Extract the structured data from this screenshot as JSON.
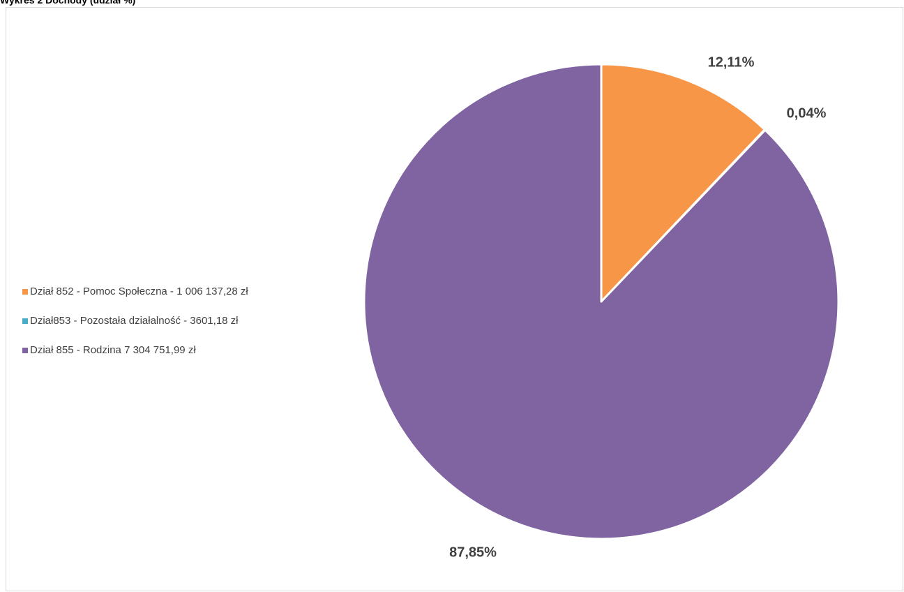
{
  "page": {
    "title": "Wykres 2 Dochody (udział %)"
  },
  "chart_data": {
    "type": "pie",
    "title": "",
    "legend_position": "left",
    "start_angle_deg": 0,
    "direction": "clockwise",
    "slices": [
      {
        "label": "Dział 852 - Pomoc Społeczna - 1 006 137,28 zł",
        "value": 1006137.28,
        "percent_label": "12,11%",
        "color": "#f79646"
      },
      {
        "label": "Dział853 - Pozostała działalność - 3601,18 zł",
        "value": 3601.18,
        "percent_label": "0,04%",
        "color": "#4bacc6"
      },
      {
        "label": "Dział 855 - Rodzina 7 304 751,99 zł",
        "value": 7304751.99,
        "percent_label": "87,85%",
        "color": "#8064a2"
      }
    ]
  }
}
